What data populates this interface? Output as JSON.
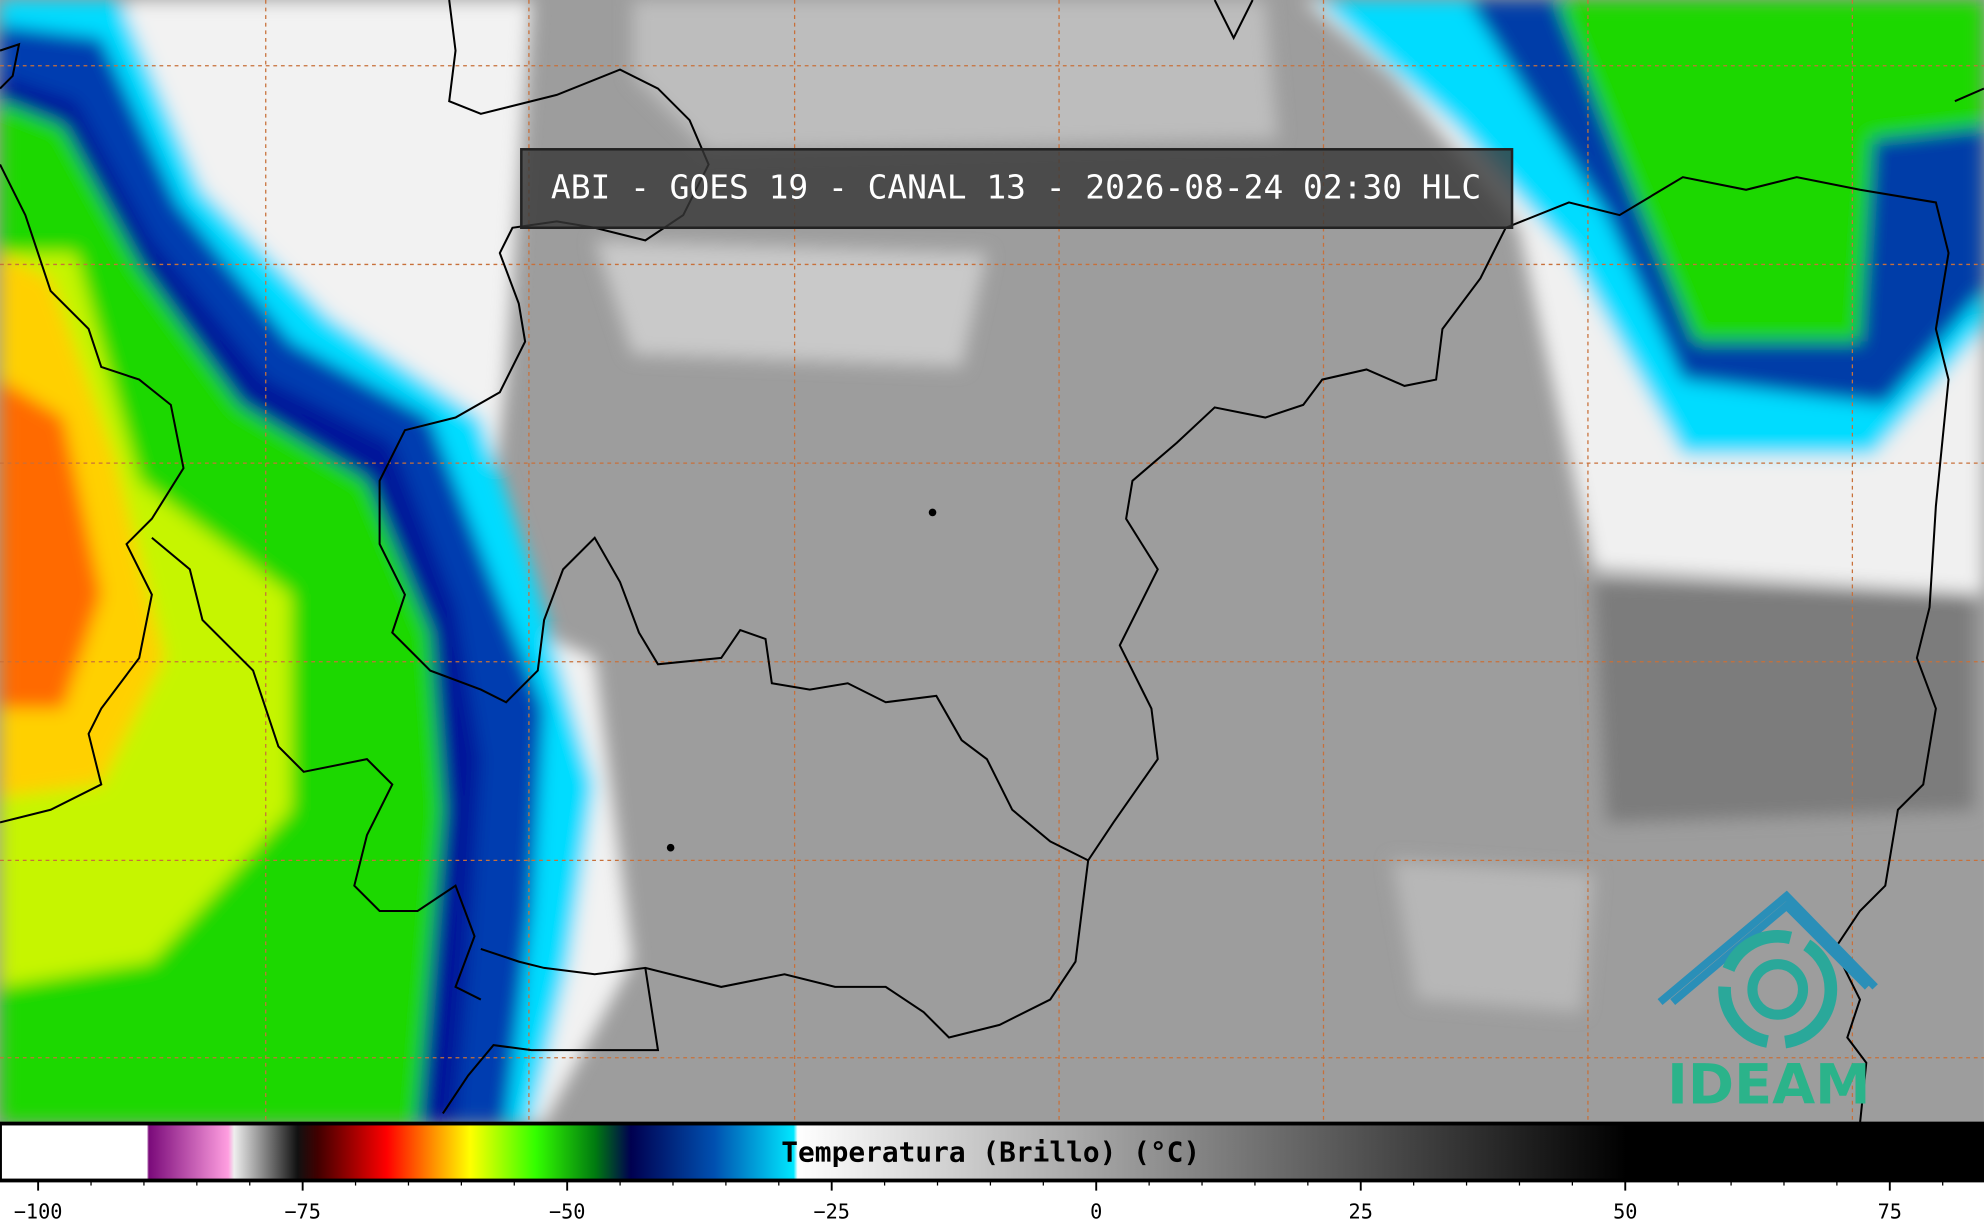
{
  "header": {
    "title": "ABI - GOES 19 - CANAL 13 - 2026-08-24 02:30 HLC"
  },
  "logo": {
    "text": "IDEAM"
  },
  "colorbar": {
    "label": "Temperatura (Brillo) (°C)",
    "lim": [
      -103.6,
      83.9
    ],
    "ticks": [
      {
        "value": -100,
        "label": "−100"
      },
      {
        "value": -75,
        "label": "−75"
      },
      {
        "value": -50,
        "label": "−50"
      },
      {
        "value": -25,
        "label": "−25"
      },
      0,
      25,
      50,
      75
    ],
    "minor_ticks": [
      -95,
      -90,
      -85,
      -80,
      -70,
      -65,
      -60,
      -55,
      -45,
      -40,
      -35,
      -30,
      -20,
      -15,
      -10,
      -5,
      5,
      10,
      15,
      20,
      30,
      35,
      40,
      45,
      55,
      60,
      65,
      70,
      80
    ]
  }
}
